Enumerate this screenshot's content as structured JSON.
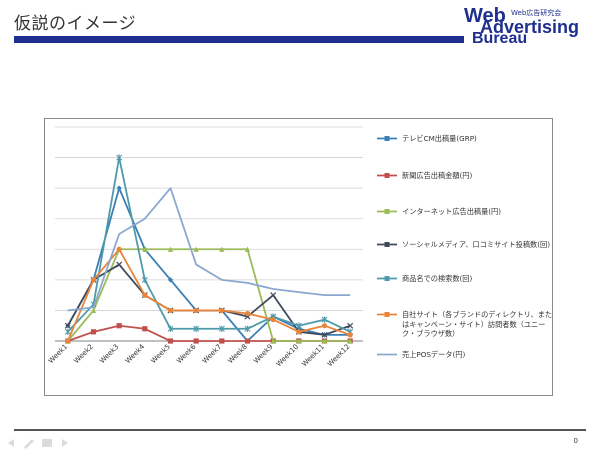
{
  "slide": {
    "title": "仮説のイメージ",
    "page_number": "0"
  },
  "logo": {
    "line1": "Web",
    "line2": "Advertising",
    "line3": "Bureau",
    "tagline": "Web広告研究会"
  },
  "colors": {
    "title_rule": "#1f2f8f",
    "grid": "#d0d0d0",
    "axis": "#808080"
  },
  "chart_data": {
    "type": "line",
    "categories": [
      "Week1",
      "Week2",
      "Week3",
      "Week4",
      "Week5",
      "Week6",
      "Week7",
      "Week8",
      "Week9",
      "Week10",
      "Week11",
      "Week12"
    ],
    "ylim": [
      0,
      7
    ],
    "grid": true,
    "legend_position": "right",
    "series": [
      {
        "name": "テレビCM出稿量(GRP)",
        "color": "#3a7fb5",
        "marker": "diamond",
        "values": [
          0.5,
          2,
          5,
          3,
          2,
          1,
          1,
          0,
          0.8,
          0.4,
          0.2,
          0.2
        ]
      },
      {
        "name": "新聞広告出稿金額(円)",
        "color": "#c0504d",
        "marker": "square",
        "values": [
          0,
          0.3,
          0.5,
          0.4,
          0,
          0,
          0,
          0,
          0,
          0,
          0,
          0
        ]
      },
      {
        "name": "インターネット広告出稿量(円)",
        "color": "#9bbb59",
        "marker": "triangle",
        "values": [
          0,
          1,
          3,
          3,
          3,
          3,
          3,
          3,
          0,
          0,
          0,
          0
        ]
      },
      {
        "name": "ソーシャルメディア、口コミサイト投稿数(回)",
        "color": "#404a5c",
        "marker": "x",
        "values": [
          0.5,
          2,
          2.5,
          1.5,
          1,
          1,
          1,
          0.8,
          1.5,
          0.3,
          0.2,
          0.5
        ]
      },
      {
        "name": "商品名での検索数(回)",
        "color": "#4e9aab",
        "marker": "star",
        "values": [
          0.3,
          1.2,
          6,
          2,
          0.4,
          0.4,
          0.4,
          0.4,
          0.8,
          0.5,
          0.7,
          0.3
        ]
      },
      {
        "name": "自社サイト（各ブランドのディレクトリ、またはキャンペーン・サイト）訪問者数（ユニーク・ブラウザ数）",
        "color": "#e8853a",
        "marker": "circle",
        "values": [
          0,
          2,
          3,
          1.5,
          1,
          1,
          1,
          0.9,
          0.7,
          0.3,
          0.5,
          0.2
        ]
      },
      {
        "name": "売上POSデータ(円)",
        "color": "#8aa8d0",
        "marker": "none",
        "values": [
          1,
          1.1,
          3.5,
          4,
          5,
          2.5,
          2,
          1.9,
          1.7,
          1.6,
          1.5,
          1.5
        ]
      }
    ]
  }
}
